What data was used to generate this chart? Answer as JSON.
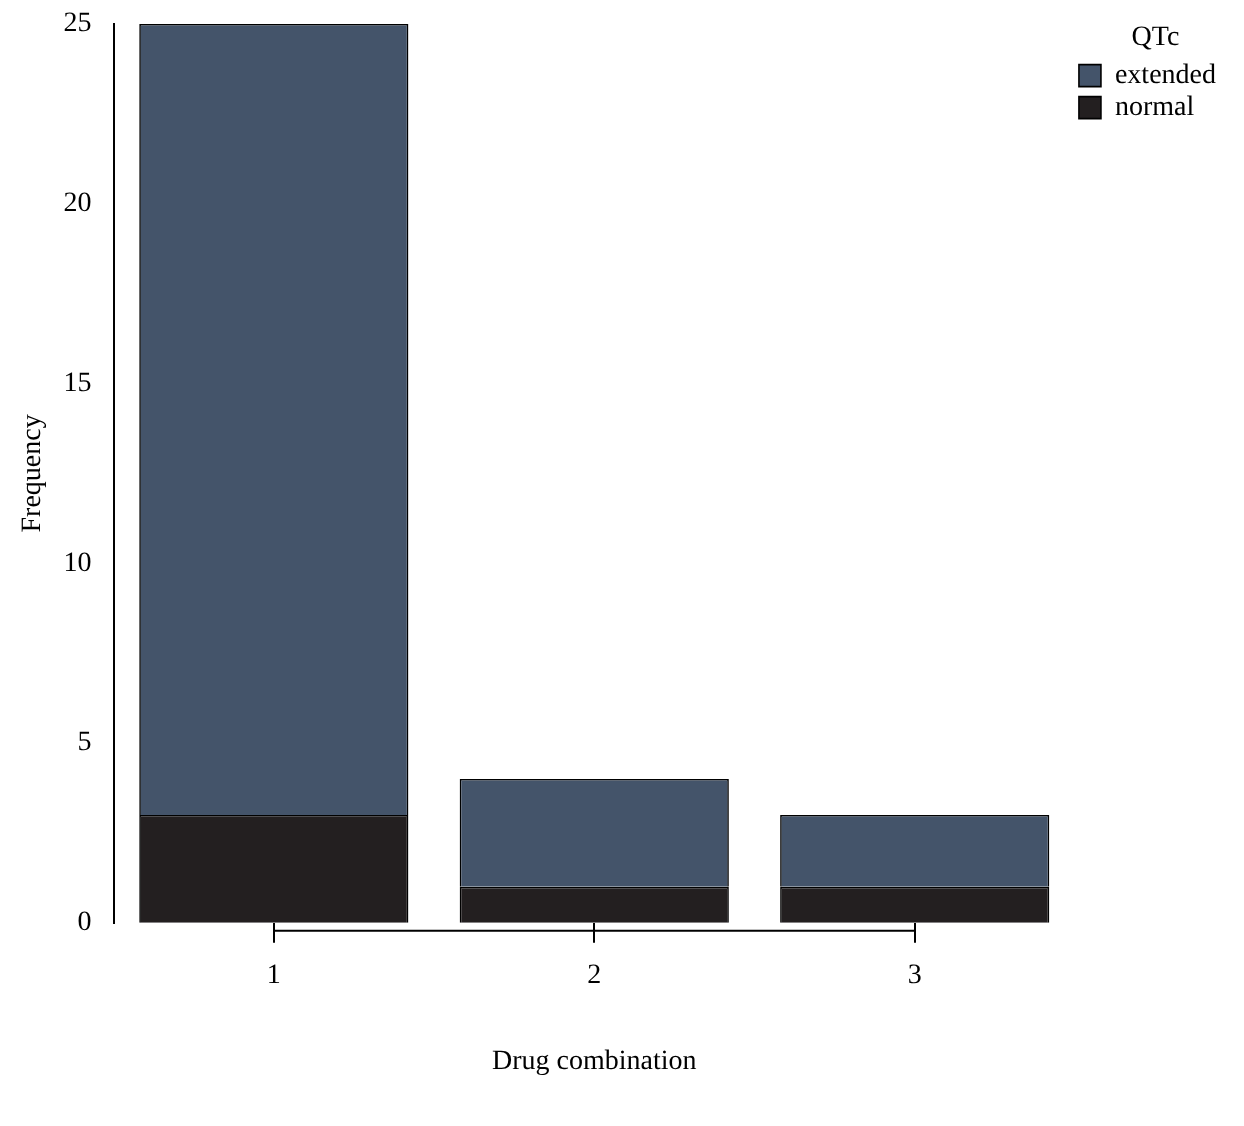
{
  "chart_data": {
    "type": "bar",
    "xlabel": "Drug combination",
    "ylabel": "Frequency",
    "legend_title": "QTc",
    "categories": [
      "1",
      "2",
      "3"
    ],
    "stacked": true,
    "series": [
      {
        "name": "normal",
        "color": "#231f20",
        "values": [
          3,
          1,
          1
        ]
      },
      {
        "name": "extended",
        "color": "#44546a",
        "values": [
          22,
          3,
          2
        ]
      }
    ],
    "ylim": [
      0,
      25
    ],
    "yticks": [
      0,
      5,
      10,
      15,
      20,
      25
    ],
    "grid": false,
    "legend": "top right"
  }
}
